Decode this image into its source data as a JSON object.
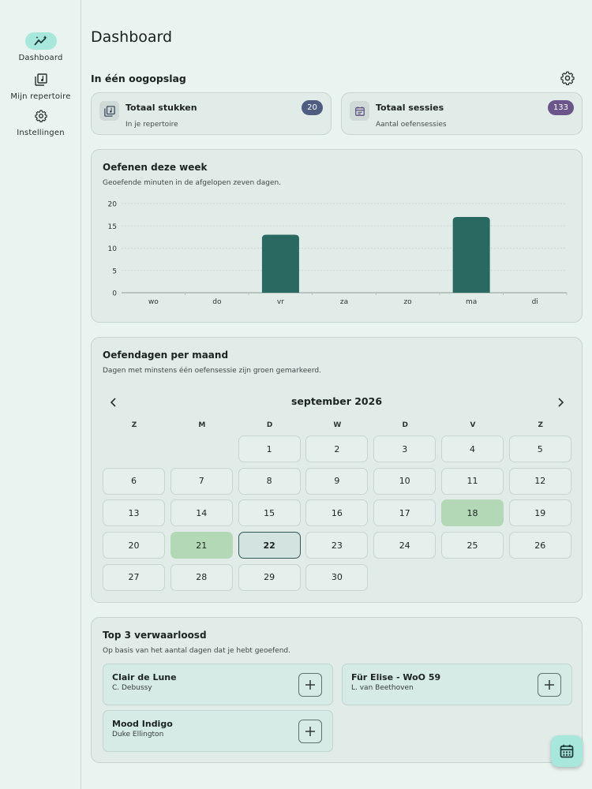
{
  "nav": {
    "items": [
      {
        "label": "Dashboard",
        "icon": "chart-sparkle-icon",
        "active": true
      },
      {
        "label": "Mijn repertoire",
        "icon": "library-music-icon",
        "active": false
      },
      {
        "label": "Instellingen",
        "icon": "gear-icon",
        "active": false
      }
    ]
  },
  "page": {
    "title": "Dashboard"
  },
  "overview": {
    "title": "In één oogopslag",
    "settings_icon": "gear-icon",
    "stats": [
      {
        "title": "Totaal stukken",
        "subtitle": "In je repertoire",
        "value": "20",
        "badge_color": "#4f5d80",
        "icon": "library-music-icon"
      },
      {
        "title": "Totaal sessies",
        "subtitle": "Aantal oefensessies",
        "value": "133",
        "badge_color": "#6b568c",
        "icon": "calendar-icon"
      }
    ]
  },
  "week": {
    "title": "Oefenen deze week",
    "subtitle": "Geoefende minuten in de afgelopen zeven dagen."
  },
  "chart_data": {
    "type": "bar",
    "title": "Oefenen deze week",
    "categories": [
      "wo",
      "do",
      "vr",
      "za",
      "zo",
      "ma",
      "di"
    ],
    "values": [
      0,
      0,
      13,
      0,
      0,
      17,
      0
    ],
    "ylim": [
      0,
      20
    ],
    "yticks": [
      0,
      5,
      10,
      15,
      20
    ],
    "bar_color": "#2a6962",
    "grid": true
  },
  "calendar": {
    "title": "Oefendagen per maand",
    "subtitle": "Dagen met minstens één oefensessie zijn groen gemarkeerd.",
    "month_label": "september 2026",
    "weekdays": [
      "Z",
      "M",
      "D",
      "W",
      "D",
      "V",
      "Z"
    ],
    "first_weekday_index": 2,
    "days_in_month": 30,
    "practiced_days": [
      18,
      21
    ],
    "today": 22,
    "practiced_color": "#b2d8b5"
  },
  "neglected": {
    "title": "Top 3 verwaarloosd",
    "subtitle": "Op basis van het aantal dagen dat je hebt geoefend.",
    "items": [
      {
        "title": "Clair de Lune",
        "composer": "C. Debussy"
      },
      {
        "title": "Für Elise - WoO 59",
        "composer": "L. van Beethoven"
      },
      {
        "title": "Mood Indigo",
        "composer": "Duke Ellington"
      }
    ]
  },
  "fab": {
    "icon": "calendar-icon"
  }
}
